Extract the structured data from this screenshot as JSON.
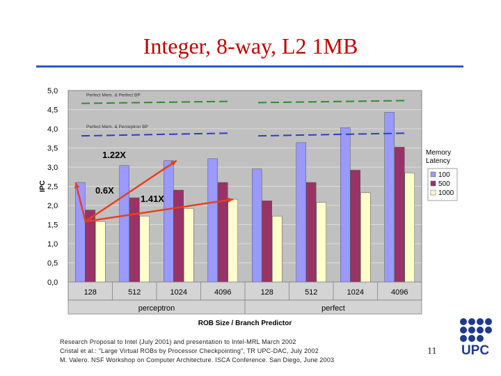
{
  "slide": {
    "title": "Integer, 8-way, L2 1MB",
    "page_number": "11",
    "footnote_lines": [
      "Research Proposal to Intel (July 2001) and presentation to Intel-MRL March 2002",
      "Cristal et al.: \"Large Virtual ROBs by Processor Checkpointing\", TR UPC-DAC, July 2002",
      "M. Valero. NSF Workshop on Computer Architecture. ISCA Conference. San Diego, June 2003"
    ],
    "logo_text": "UPC",
    "colors": {
      "title": "#c00000",
      "rule": "#2b56c6",
      "logo": "#1f3a8a"
    }
  },
  "chart_data": {
    "type": "bar",
    "xlabel": "ROB Size / Branch Predictor",
    "ylabel": "IPC",
    "ylim": [
      0,
      5
    ],
    "yticks": [
      "0,0",
      "0,5",
      "1,0",
      "1,5",
      "2,0",
      "2,5",
      "3,0",
      "3,5",
      "4,0",
      "4,5",
      "5,0"
    ],
    "categories": [
      "128",
      "512",
      "1024",
      "4096",
      "128",
      "512",
      "1024",
      "4096"
    ],
    "groups": [
      {
        "label": "perceptron",
        "span": [
          0,
          3
        ]
      },
      {
        "label": "perfect",
        "span": [
          4,
          7
        ]
      }
    ],
    "legend": {
      "title_lines": [
        "Memory",
        "Latency"
      ],
      "position": "right"
    },
    "series": [
      {
        "name": "100",
        "color": "#9999ff",
        "values": [
          2.6,
          3.04,
          3.17,
          3.22,
          2.95,
          3.64,
          4.03,
          4.43
        ]
      },
      {
        "name": "500",
        "color": "#993366",
        "values": [
          1.88,
          2.2,
          2.4,
          2.6,
          2.12,
          2.6,
          2.92,
          3.52
        ]
      },
      {
        "name": "1000",
        "color": "#ffffcc",
        "values": [
          1.58,
          1.72,
          1.92,
          2.16,
          1.72,
          2.08,
          2.33,
          2.85
        ]
      }
    ],
    "reference_lines": [
      {
        "label": "Perfect Mem. & Perfect BP",
        "color": "#2e8b2e",
        "values": [
          4.7,
          4.72
        ]
      },
      {
        "label": "Perfect Mem. & Perceptron BP",
        "color": "#2b3fc8",
        "values": [
          3.87,
          3.87
        ]
      }
    ],
    "annotations": [
      {
        "text": "1.22X",
        "color": "#e8401c"
      },
      {
        "text": "0.6X",
        "color": "#e8401c"
      },
      {
        "text": "1.41X",
        "color": "#e8401c"
      }
    ],
    "grid": true,
    "plot_background": "#c0c0c0"
  }
}
